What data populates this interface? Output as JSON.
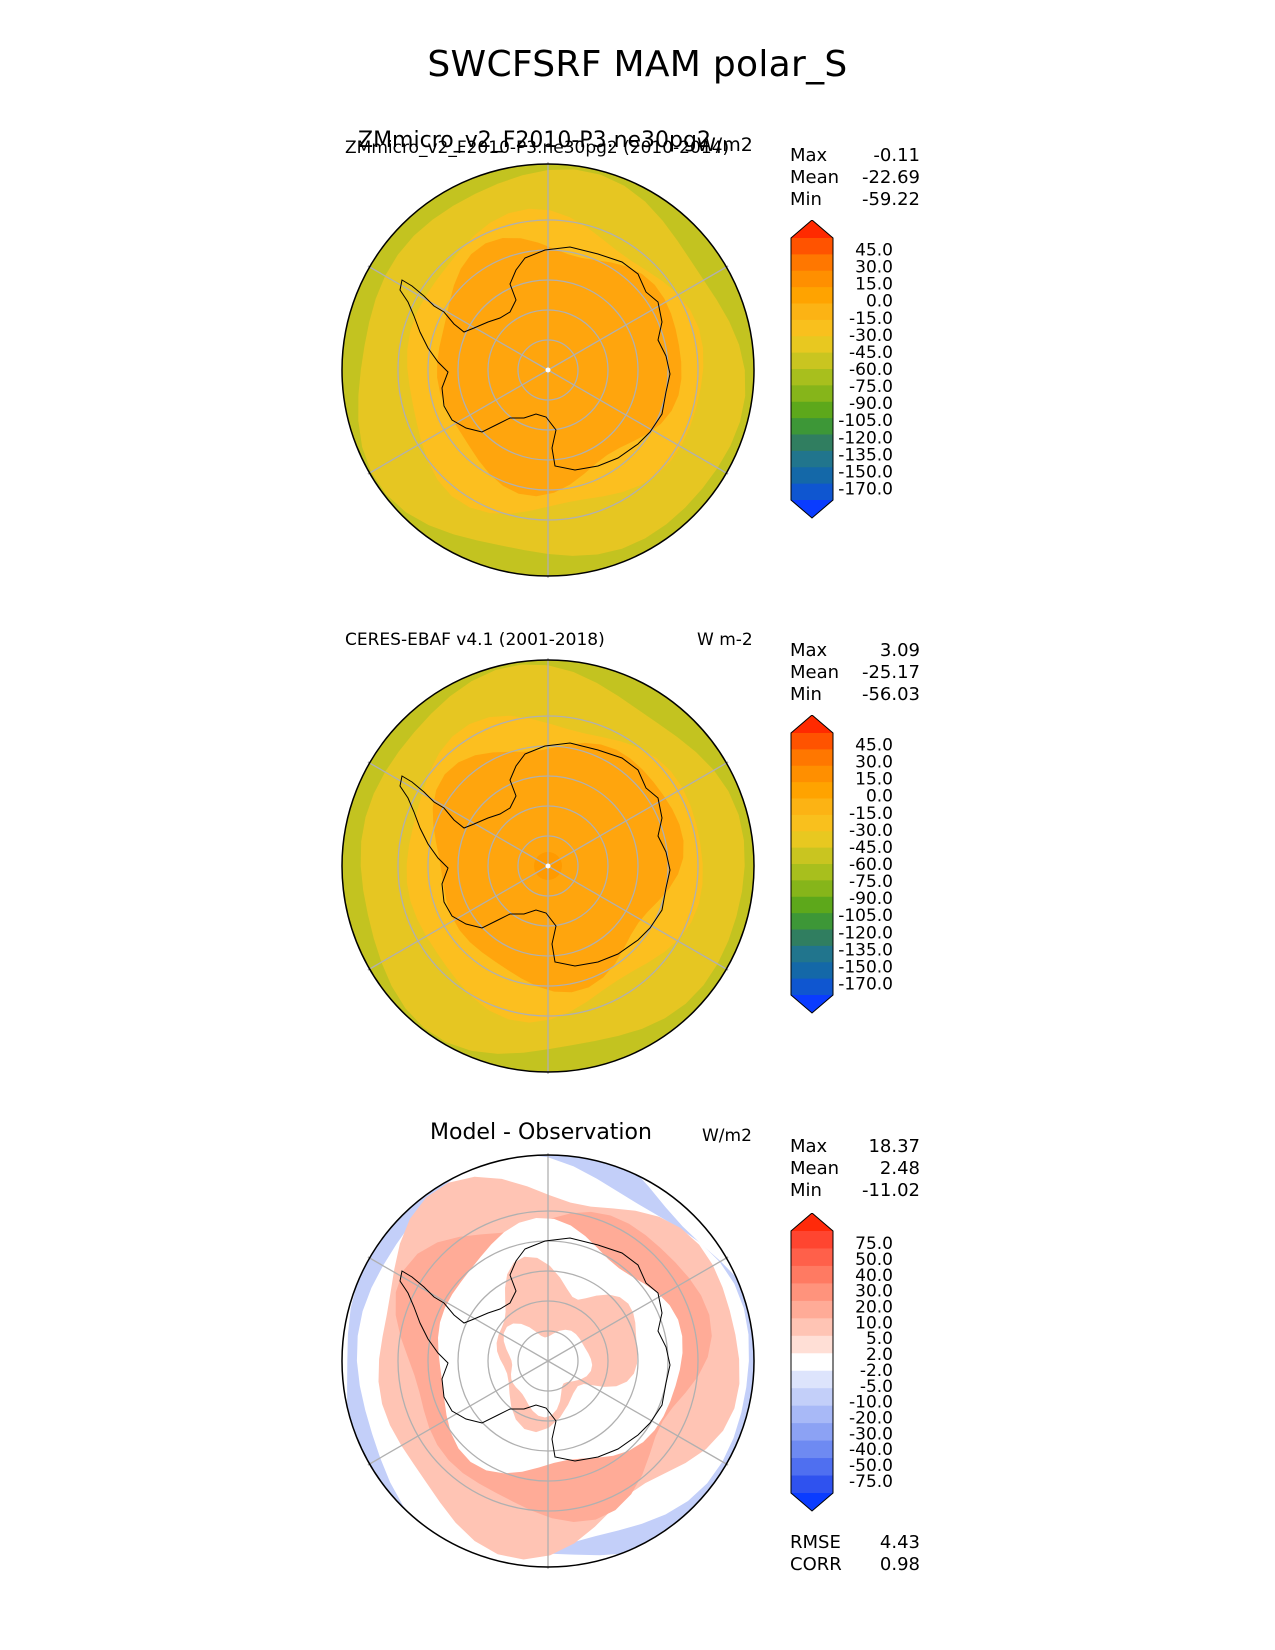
{
  "figure_title": "SWCFSRF MAM polar_S",
  "colors": {
    "continent": "#ffa50d",
    "ocean_inner": "#fcbf1f",
    "ocean_outer": "#e6c622",
    "ocean_edge": "#c3c320",
    "grid": "#b0b0b0",
    "coast": "#000000"
  },
  "panels": [
    {
      "id": "test",
      "title_left": "ZMmicro_v2_F2010-P3.ne30pg2",
      "title_left_overlap": "ZMmicro_v2_F2010-P3.ne30pg2 (2010-2014)",
      "title_right": "W/m2",
      "stats": [
        {
          "label": "Max",
          "value": "-0.11"
        },
        {
          "label": "Mean",
          "value": "-22.69"
        },
        {
          "label": "Min",
          "value": "-59.22"
        }
      ],
      "colorbar": {
        "ticks": [
          "45.0",
          "30.0",
          "15.0",
          "0.0",
          "-15.0",
          "-30.0",
          "-45.0",
          "-60.0",
          "-75.0",
          "-90.0",
          "-105.0",
          "-120.0",
          "-135.0",
          "-150.0",
          "-170.0"
        ],
        "colors": [
          "#ff2a00",
          "#ff5300",
          "#ff7700",
          "#ff8f00",
          "#ffa300",
          "#fcb314",
          "#f9c01d",
          "#e8c820",
          "#c9c520",
          "#a8bf1d",
          "#86b51a",
          "#5da81b",
          "#3d9737",
          "#307e60",
          "#21758d",
          "#1468a8",
          "#0f56d0",
          "#0a3cff"
        ]
      }
    },
    {
      "id": "reference",
      "title_left": "CERES-EBAF v4.1 (2001-2018)",
      "title_right": "W m-2",
      "stats": [
        {
          "label": "Max",
          "value": "3.09"
        },
        {
          "label": "Mean",
          "value": "-25.17"
        },
        {
          "label": "Min",
          "value": "-56.03"
        }
      ],
      "colorbar": {
        "ticks": [
          "45.0",
          "30.0",
          "15.0",
          "0.0",
          "-15.0",
          "-30.0",
          "-45.0",
          "-60.0",
          "-75.0",
          "-90.0",
          "-105.0",
          "-120.0",
          "-135.0",
          "-150.0",
          "-170.0"
        ],
        "colors": [
          "#ff2a00",
          "#ff5300",
          "#ff7700",
          "#ff8f00",
          "#ffa300",
          "#fcb314",
          "#f9c01d",
          "#e8c820",
          "#c9c520",
          "#a8bf1d",
          "#86b51a",
          "#5da81b",
          "#3d9737",
          "#307e60",
          "#21758d",
          "#1468a8",
          "#0f56d0",
          "#0a3cff"
        ]
      }
    },
    {
      "id": "difference",
      "title_center": "Model - Observation",
      "title_right": "W/m2",
      "stats": [
        {
          "label": "Max",
          "value": "18.37"
        },
        {
          "label": "Mean",
          "value": "2.48"
        },
        {
          "label": "Min",
          "value": "-11.02"
        }
      ],
      "bottom_stats": [
        {
          "label": "RMSE",
          "value": "4.43"
        },
        {
          "label": "CORR",
          "value": "0.98"
        }
      ],
      "colorbar": {
        "ticks": [
          "75.0",
          "50.0",
          "40.0",
          "30.0",
          "20.0",
          "10.0",
          "5.0",
          "2.0",
          "-2.0",
          "-5.0",
          "-10.0",
          "-20.0",
          "-30.0",
          "-40.0",
          "-50.0",
          "-75.0"
        ],
        "colors": [
          "#ff2a0a",
          "#ff4530",
          "#ff604a",
          "#ff7a62",
          "#ff937c",
          "#ffab97",
          "#ffc4b4",
          "#ffdfd6",
          "#ffffff",
          "#dde4fc",
          "#c3cff9",
          "#a8b9f7",
          "#8ca2f4",
          "#6e8af2",
          "#4f6ff0",
          "#2f52ef",
          "#0a3cff"
        ]
      }
    }
  ],
  "chart_data": [
    {
      "type": "heatmap",
      "projection": "south polar stereographic",
      "title": "ZMmicro_v2_F2010-P3.ne30pg2 (2010-2014)",
      "units": "W/m2",
      "summary": {
        "max": -0.11,
        "mean": -22.69,
        "min": -59.22
      },
      "colorbar_levels": [
        -170,
        -150,
        -135,
        -120,
        -105,
        -90,
        -75,
        -60,
        -45,
        -30,
        -15,
        0,
        15,
        30,
        45
      ],
      "regions": [
        {
          "region": "Antarctic continent",
          "approx_value": -15
        },
        {
          "region": "Sea-ice zone near coast",
          "approx_value": -25
        },
        {
          "region": "Southern Ocean",
          "approx_value": -40
        },
        {
          "region": "Outer ocean edge",
          "approx_value": -55
        }
      ]
    },
    {
      "type": "heatmap",
      "projection": "south polar stereographic",
      "title": "CERES-EBAF v4.1 (2001-2018)",
      "units": "W m-2",
      "summary": {
        "max": 3.09,
        "mean": -25.17,
        "min": -56.03
      },
      "colorbar_levels": [
        -170,
        -150,
        -135,
        -120,
        -105,
        -90,
        -75,
        -60,
        -45,
        -30,
        -15,
        0,
        15,
        30,
        45
      ],
      "regions": [
        {
          "region": "Antarctic continent",
          "approx_value": -15
        },
        {
          "region": "Sea-ice zone near coast",
          "approx_value": -25
        },
        {
          "region": "Southern Ocean",
          "approx_value": -40
        },
        {
          "region": "Outer ocean edge",
          "approx_value": -55
        }
      ]
    },
    {
      "type": "heatmap",
      "projection": "south polar stereographic",
      "title": "Model - Observation",
      "units": "W/m2",
      "summary": {
        "max": 18.37,
        "mean": 2.48,
        "min": -11.02,
        "rmse": 4.43,
        "corr": 0.98
      },
      "colorbar_levels": [
        -75,
        -50,
        -40,
        -30,
        -20,
        -10,
        -5,
        -2,
        2,
        5,
        10,
        20,
        30,
        40,
        50,
        75
      ],
      "regions": [
        {
          "region": "Antarctic continent interior",
          "approx_value": 0
        },
        {
          "region": "Southern Ocean ring",
          "approx_value": 5
        },
        {
          "region": "Outer edge (Pacific / Atlantic sectors)",
          "approx_value": -5
        }
      ]
    }
  ]
}
